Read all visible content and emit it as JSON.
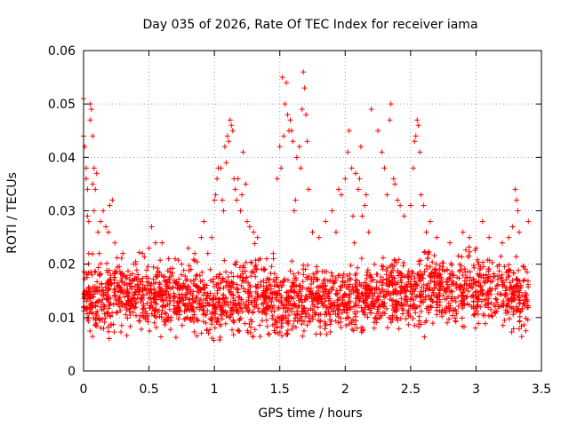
{
  "chart_data": {
    "type": "scatter",
    "title": "Day 035 of 2026, Rate Of TEC Index for receiver iama",
    "xlabel": "GPS time / hours",
    "ylabel": "ROTI / TECUs",
    "xlim": [
      0,
      3.5
    ],
    "ylim": [
      0,
      0.06
    ],
    "grid": true,
    "xticks": [
      0,
      0.5,
      1,
      1.5,
      2,
      2.5,
      3,
      3.5
    ],
    "xtick_labels": [
      "0",
      "0.5",
      "1",
      "1.5",
      "2",
      "2.5",
      "3",
      "3.5"
    ],
    "yticks": [
      0,
      0.01,
      0.02,
      0.03,
      0.04,
      0.05,
      0.06
    ],
    "ytick_labels": [
      "0",
      "0.01",
      "0.02",
      "0.03",
      "0.04",
      "0.05",
      "0.06"
    ],
    "series": [
      {
        "name": "ROTI",
        "marker": "+",
        "color": "#ff0000",
        "points": [
          [
            0.0,
            0.051
          ],
          [
            0.0,
            0.044
          ],
          [
            0.01,
            0.042
          ],
          [
            0.02,
            0.038
          ],
          [
            0.02,
            0.036
          ],
          [
            0.03,
            0.034
          ],
          [
            0.03,
            0.029
          ],
          [
            0.04,
            0.028
          ],
          [
            0.04,
            0.022
          ],
          [
            0.05,
            0.047
          ],
          [
            0.05,
            0.05
          ],
          [
            0.06,
            0.049
          ],
          [
            0.07,
            0.044
          ],
          [
            0.07,
            0.035
          ],
          [
            0.08,
            0.038
          ],
          [
            0.08,
            0.03
          ],
          [
            0.09,
            0.034
          ],
          [
            0.1,
            0.037
          ],
          [
            0.11,
            0.026
          ],
          [
            0.12,
            0.022
          ],
          [
            0.13,
            0.028
          ],
          [
            0.15,
            0.03
          ],
          [
            0.17,
            0.027
          ],
          [
            0.19,
            0.026
          ],
          [
            0.2,
            0.031
          ],
          [
            0.22,
            0.032
          ],
          [
            0.24,
            0.024
          ],
          [
            0.3,
            0.022
          ],
          [
            0.4,
            0.02
          ],
          [
            0.45,
            0.022
          ],
          [
            0.5,
            0.023
          ],
          [
            0.52,
            0.027
          ],
          [
            0.55,
            0.024
          ],
          [
            0.6,
            0.024
          ],
          [
            0.65,
            0.021
          ],
          [
            0.7,
            0.021
          ],
          [
            0.75,
            0.02
          ],
          [
            0.8,
            0.023
          ],
          [
            0.85,
            0.022
          ],
          [
            0.9,
            0.025
          ],
          [
            0.92,
            0.028
          ],
          [
            0.95,
            0.022
          ],
          [
            0.98,
            0.025
          ],
          [
            1.0,
            0.032
          ],
          [
            1.01,
            0.033
          ],
          [
            1.02,
            0.036
          ],
          [
            1.03,
            0.038
          ],
          [
            1.05,
            0.038
          ],
          [
            1.06,
            0.032
          ],
          [
            1.07,
            0.03
          ],
          [
            1.08,
            0.042
          ],
          [
            1.09,
            0.039
          ],
          [
            1.1,
            0.044
          ],
          [
            1.11,
            0.043
          ],
          [
            1.12,
            0.047
          ],
          [
            1.13,
            0.046
          ],
          [
            1.14,
            0.045
          ],
          [
            1.15,
            0.036
          ],
          [
            1.16,
            0.034
          ],
          [
            1.17,
            0.032
          ],
          [
            1.18,
            0.036
          ],
          [
            1.2,
            0.03
          ],
          [
            1.21,
            0.033
          ],
          [
            1.22,
            0.041
          ],
          [
            1.24,
            0.035
          ],
          [
            1.25,
            0.028
          ],
          [
            1.27,
            0.027
          ],
          [
            1.3,
            0.026
          ],
          [
            1.33,
            0.025
          ],
          [
            1.35,
            0.021
          ],
          [
            1.4,
            0.021
          ],
          [
            1.45,
            0.022
          ],
          [
            1.48,
            0.036
          ],
          [
            1.5,
            0.042
          ],
          [
            1.51,
            0.038
          ],
          [
            1.52,
            0.055
          ],
          [
            1.53,
            0.044
          ],
          [
            1.54,
            0.05
          ],
          [
            1.55,
            0.054
          ],
          [
            1.56,
            0.048
          ],
          [
            1.57,
            0.045
          ],
          [
            1.58,
            0.047
          ],
          [
            1.59,
            0.045
          ],
          [
            1.6,
            0.043
          ],
          [
            1.61,
            0.03
          ],
          [
            1.62,
            0.032
          ],
          [
            1.63,
            0.04
          ],
          [
            1.65,
            0.042
          ],
          [
            1.66,
            0.038
          ],
          [
            1.67,
            0.049
          ],
          [
            1.68,
            0.056
          ],
          [
            1.69,
            0.053
          ],
          [
            1.7,
            0.048
          ],
          [
            1.71,
            0.043
          ],
          [
            1.72,
            0.034
          ],
          [
            1.75,
            0.026
          ],
          [
            1.8,
            0.025
          ],
          [
            1.85,
            0.028
          ],
          [
            1.9,
            0.03
          ],
          [
            1.93,
            0.026
          ],
          [
            1.95,
            0.034
          ],
          [
            1.97,
            0.033
          ],
          [
            2.0,
            0.036
          ],
          [
            2.02,
            0.041
          ],
          [
            2.03,
            0.045
          ],
          [
            2.05,
            0.038
          ],
          [
            2.06,
            0.029
          ],
          [
            2.07,
            0.024
          ],
          [
            2.08,
            0.037
          ],
          [
            2.1,
            0.034
          ],
          [
            2.11,
            0.036
          ],
          [
            2.12,
            0.042
          ],
          [
            2.13,
            0.029
          ],
          [
            2.15,
            0.031
          ],
          [
            2.16,
            0.033
          ],
          [
            2.18,
            0.026
          ],
          [
            2.2,
            0.049
          ],
          [
            2.25,
            0.045
          ],
          [
            2.28,
            0.041
          ],
          [
            2.3,
            0.038
          ],
          [
            2.32,
            0.033
          ],
          [
            2.34,
            0.047
          ],
          [
            2.35,
            0.05
          ],
          [
            2.37,
            0.036
          ],
          [
            2.38,
            0.035
          ],
          [
            2.4,
            0.032
          ],
          [
            2.42,
            0.031
          ],
          [
            2.45,
            0.029
          ],
          [
            2.5,
            0.031
          ],
          [
            2.52,
            0.038
          ],
          [
            2.53,
            0.043
          ],
          [
            2.54,
            0.044
          ],
          [
            2.55,
            0.047
          ],
          [
            2.56,
            0.046
          ],
          [
            2.57,
            0.041
          ],
          [
            2.58,
            0.033
          ],
          [
            2.6,
            0.031
          ],
          [
            2.62,
            0.026
          ],
          [
            2.65,
            0.028
          ],
          [
            2.7,
            0.025
          ],
          [
            2.8,
            0.024
          ],
          [
            2.9,
            0.026
          ],
          [
            2.95,
            0.025
          ],
          [
            3.0,
            0.023
          ],
          [
            3.05,
            0.028
          ],
          [
            3.1,
            0.025
          ],
          [
            3.2,
            0.024
          ],
          [
            3.25,
            0.025
          ],
          [
            3.28,
            0.027
          ],
          [
            3.3,
            0.034
          ],
          [
            3.31,
            0.032
          ],
          [
            3.32,
            0.03
          ],
          [
            3.33,
            0.026
          ],
          [
            3.4,
            0.028
          ]
        ],
        "band": {
          "x": [
            0.0,
            0.25,
            0.5,
            0.75,
            1.0,
            1.25,
            1.5,
            1.75,
            2.0,
            2.25,
            2.5,
            2.75,
            3.0,
            3.25,
            3.4
          ],
          "low": [
            0.005,
            0.005,
            0.005,
            0.005,
            0.004,
            0.005,
            0.004,
            0.005,
            0.005,
            0.006,
            0.006,
            0.006,
            0.006,
            0.006,
            0.005
          ],
          "high": [
            0.022,
            0.023,
            0.023,
            0.022,
            0.021,
            0.025,
            0.022,
            0.022,
            0.022,
            0.023,
            0.024,
            0.025,
            0.025,
            0.023,
            0.022
          ],
          "count": 2400
        }
      }
    ]
  }
}
